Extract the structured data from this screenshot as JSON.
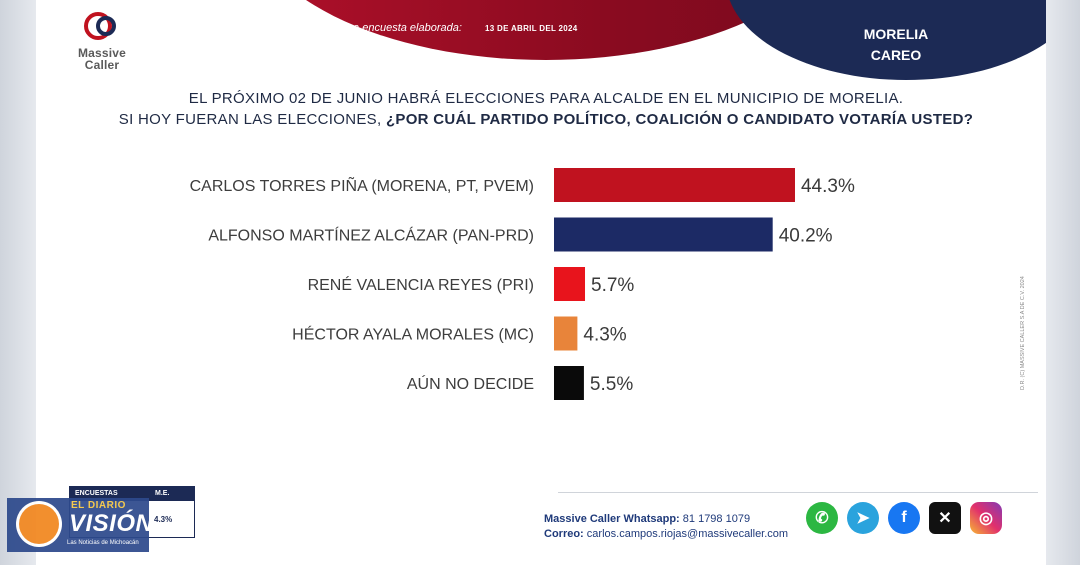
{
  "header": {
    "logo_text_1": "Massive",
    "logo_text_2": "Caller",
    "last_survey_label": "Última encuesta elaborada:",
    "last_survey_date": "13 DE ABRIL DEL 2024",
    "city_line_1": "MORELIA",
    "city_line_2": "CAREO"
  },
  "question": {
    "line1": "EL PRÓXIMO 02 DE JUNIO HABRÁ ELECCIONES PARA ALCALDE EN EL MUNICIPIO DE MORELIA.",
    "line2_plain": "SI HOY FUERAN LAS ELECCIONES, ",
    "line2_bold": "¿POR CUÁL PARTIDO POLÍTICO, COALICIÓN O CANDIDATO VOTARÍA USTED?"
  },
  "chart_data": {
    "type": "bar",
    "orientation": "horizontal",
    "categories": [
      "CARLOS TORRES PIÑA (MORENA, PT, PVEM)",
      "ALFONSO MARTÍNEZ ALCÁZAR (PAN-PRD)",
      "RENÉ VALENCIA REYES (PRI)",
      "HÉCTOR AYALA MORALES (MC)",
      "AÚN NO DECIDE"
    ],
    "values": [
      44.3,
      40.2,
      5.7,
      4.3,
      5.5
    ],
    "value_labels": [
      "44.3%",
      "40.2%",
      "5.7%",
      "4.3%",
      "5.5%"
    ],
    "colors": [
      "#c0121f",
      "#1c2a65",
      "#e8141c",
      "#e8843a",
      "#0a0a0a"
    ],
    "xlim": [
      0,
      50
    ]
  },
  "credit": "D.R. (C) MASSIVE CALLER S.A DE C.V. 2024",
  "footer": {
    "whatsapp_label": "Massive Caller Whatsapp:",
    "whatsapp_number": "81 1798 1079",
    "email_label": "Correo:",
    "email": "carlos.campos.riojas@massivecaller.com"
  },
  "social_icons": [
    "whatsapp-icon",
    "telegram-icon",
    "facebook-icon",
    "x-icon",
    "instagram-icon"
  ],
  "method_table": {
    "header_1": "ENCUESTAS",
    "header_2": "M.E.",
    "value": "4.3%"
  },
  "watermark": {
    "top": "EL DIARIO",
    "main": "VISIÓN",
    "sub": "Las Noticias de Michoacán"
  }
}
